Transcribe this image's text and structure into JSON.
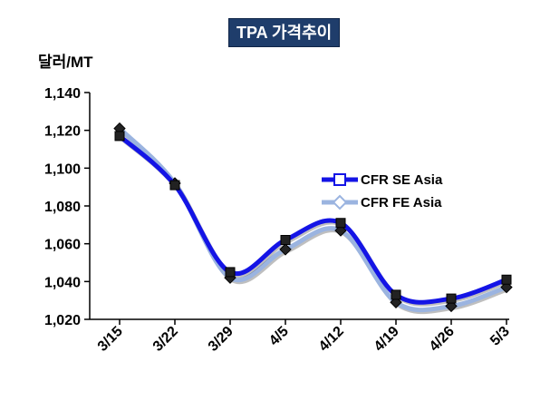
{
  "chart_data": {
    "type": "line",
    "title": "TPA 가격추이",
    "ylabel": "달러/MT",
    "xlabel": "",
    "categories": [
      "3/15",
      "3/22",
      "3/29",
      "4/5",
      "4/12",
      "4/19",
      "4/26",
      "5/3"
    ],
    "ylim": [
      1020,
      1140
    ],
    "yticks": [
      1020,
      1040,
      1060,
      1080,
      1100,
      1120,
      1140
    ],
    "ytick_labels": [
      "1,020",
      "1,040",
      "1,060",
      "1,080",
      "1,100",
      "1,120",
      "1,140"
    ],
    "grid": false,
    "legend_position": "right",
    "series": [
      {
        "name": "CFR SE Asia",
        "color": "#1414e6",
        "marker": "square",
        "values": [
          1117,
          1091,
          1045,
          1062,
          1071,
          1033,
          1031,
          1041
        ]
      },
      {
        "name": "CFR FE Asia",
        "color": "#9bb4e0",
        "marker": "diamond",
        "values": [
          1121,
          1092,
          1042,
          1057,
          1067,
          1029,
          1027,
          1037
        ]
      }
    ]
  }
}
